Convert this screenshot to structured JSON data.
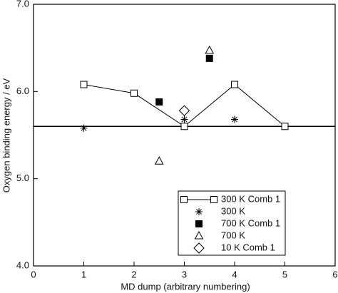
{
  "chart_data": {
    "type": "scatter",
    "x_label": "MD dump (arbitrary numbering)",
    "y_label": "Oxygen binding energy / eV",
    "xlim": [
      0,
      6
    ],
    "xticks": [
      0,
      1,
      2,
      3,
      4,
      5,
      6
    ],
    "ylim": [
      4,
      7
    ],
    "yticks": [
      {
        "value": 4,
        "label": "4.0"
      },
      {
        "value": 5,
        "label": "5.0"
      },
      {
        "value": 6,
        "label": "6.0"
      },
      {
        "value": 7,
        "label": "7.0"
      }
    ],
    "hline": 5.6,
    "color": "#000000",
    "series": [
      {
        "name": "300 K  Comb 1",
        "marker": "square",
        "line": true,
        "x": [
          1,
          2,
          3,
          4,
          5
        ],
        "values": [
          6.08,
          5.98,
          5.6,
          6.08,
          5.6
        ]
      },
      {
        "name": "300 K",
        "marker": "asterisk",
        "line": false,
        "x": [
          1,
          3,
          4
        ],
        "values": [
          5.58,
          5.68,
          5.68
        ]
      },
      {
        "name": "700 K  Comb 1",
        "marker": "filled-square",
        "line": false,
        "x": [
          2.5,
          3.5
        ],
        "values": [
          5.88,
          6.38
        ]
      },
      {
        "name": "700 K",
        "marker": "triangle",
        "line": false,
        "x": [
          2.5,
          3.5
        ],
        "values": [
          5.2,
          6.47
        ]
      },
      {
        "name": "10 K  Comb 1",
        "marker": "diamond",
        "line": false,
        "x": [
          3
        ],
        "values": [
          5.78
        ]
      }
    ]
  }
}
